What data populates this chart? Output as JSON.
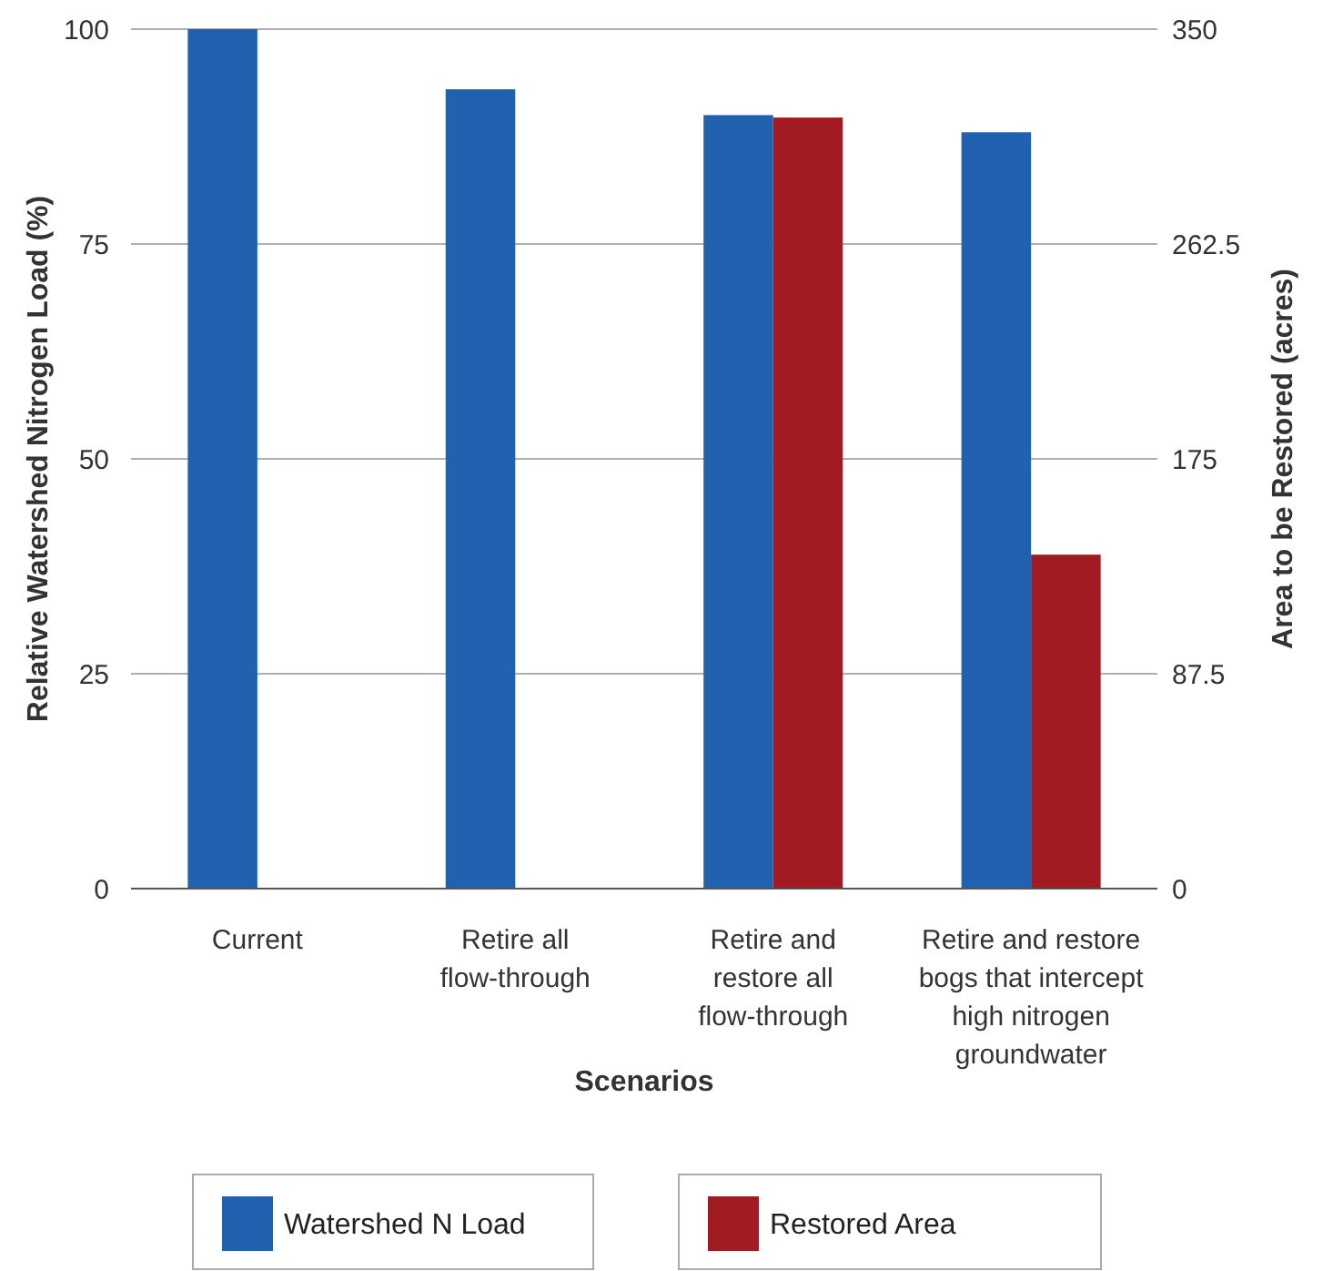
{
  "chart_data": {
    "type": "bar",
    "xlabel": "Scenarios",
    "ylabel": "Relative Watershed Nitrogen Load (%)",
    "y2label": "Area to be Restored (acres)",
    "categories": [
      "Current",
      "Retire all\nflow-through",
      "Retire and\nrestore all\nflow-through",
      "Retire and restore\nbogs that intercept\nhigh nitrogen\ngroundwater"
    ],
    "series": [
      {
        "name": "Watershed N Load",
        "color": "#2261b0",
        "values": [
          100,
          93,
          90,
          88
        ]
      },
      {
        "name": "Restored Area",
        "color": "#a01c22",
        "values": [
          null,
          null,
          314,
          136
        ],
        "axis": "y2"
      }
    ],
    "ylim": [
      0,
      100
    ],
    "yticks": [
      0,
      25,
      50,
      75,
      100
    ],
    "y2lim": [
      0,
      350
    ],
    "y2ticks": [
      0,
      87.5,
      175,
      262.5,
      350
    ],
    "grid": "y",
    "legend": "bottom"
  }
}
